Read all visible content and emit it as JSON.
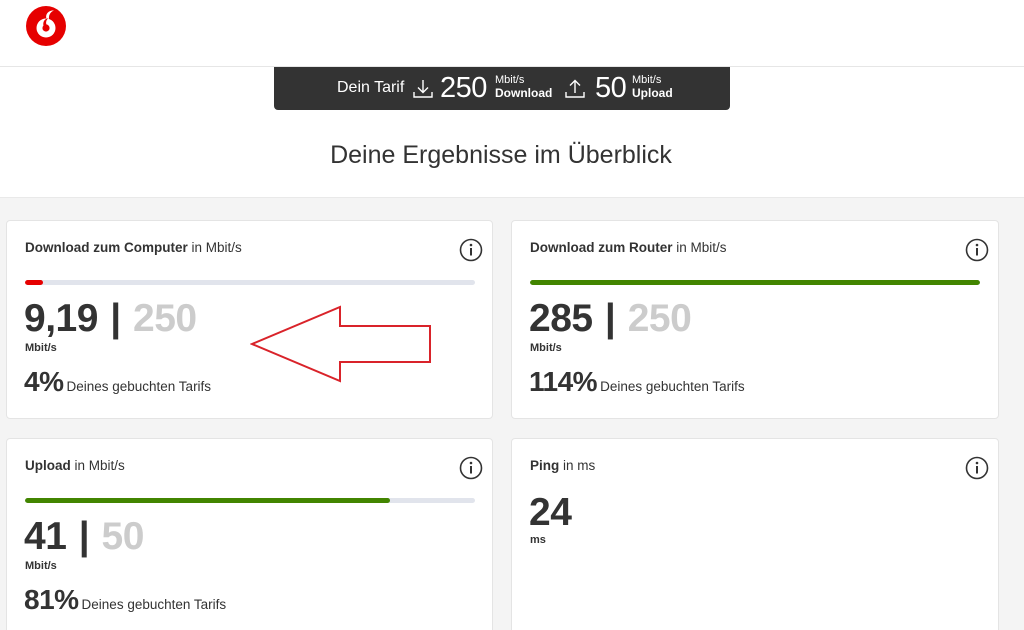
{
  "brand": {
    "logo": "vodafone-logo",
    "accent_color": "#e60000"
  },
  "tarif": {
    "label": "Dein Tarif",
    "download_value": "250",
    "download_unit": "Mbit/s",
    "download_label": "Download",
    "upload_value": "50",
    "upload_unit": "Mbit/s",
    "upload_label": "Upload",
    "download_icon": "download-icon",
    "upload_icon": "upload-icon"
  },
  "page_title": "Deine Ergebnisse im Überblick",
  "cards": {
    "download_computer": {
      "title_bold": "Download zum Computer",
      "title_rest": " in Mbit/s",
      "value": "9,19",
      "separator": "|",
      "max": "250",
      "unit": "Mbit/s",
      "percent": "4%",
      "percent_text": "Deines gebuchten Tarifs",
      "progress": 0.04,
      "bar_color": "#e60000"
    },
    "download_router": {
      "title_bold": "Download zum Router",
      "title_rest": " in Mbit/s",
      "value": "285",
      "separator": "|",
      "max": "250",
      "unit": "Mbit/s",
      "percent": "114%",
      "percent_text": "Deines gebuchten Tarifs",
      "progress": 1.0,
      "bar_color": "#428500"
    },
    "upload": {
      "title_bold": "Upload",
      "title_rest": " in Mbit/s",
      "value": "41",
      "separator": "|",
      "max": "50",
      "unit": "Mbit/s",
      "percent": "81%",
      "percent_text": "Deines gebuchten Tarifs",
      "progress": 0.81,
      "bar_color": "#428500"
    },
    "ping": {
      "title_bold": "Ping",
      "title_rest": " in ms",
      "value": "24",
      "unit": "ms"
    }
  },
  "annotation": {
    "arrow_color": "#d9232a"
  }
}
